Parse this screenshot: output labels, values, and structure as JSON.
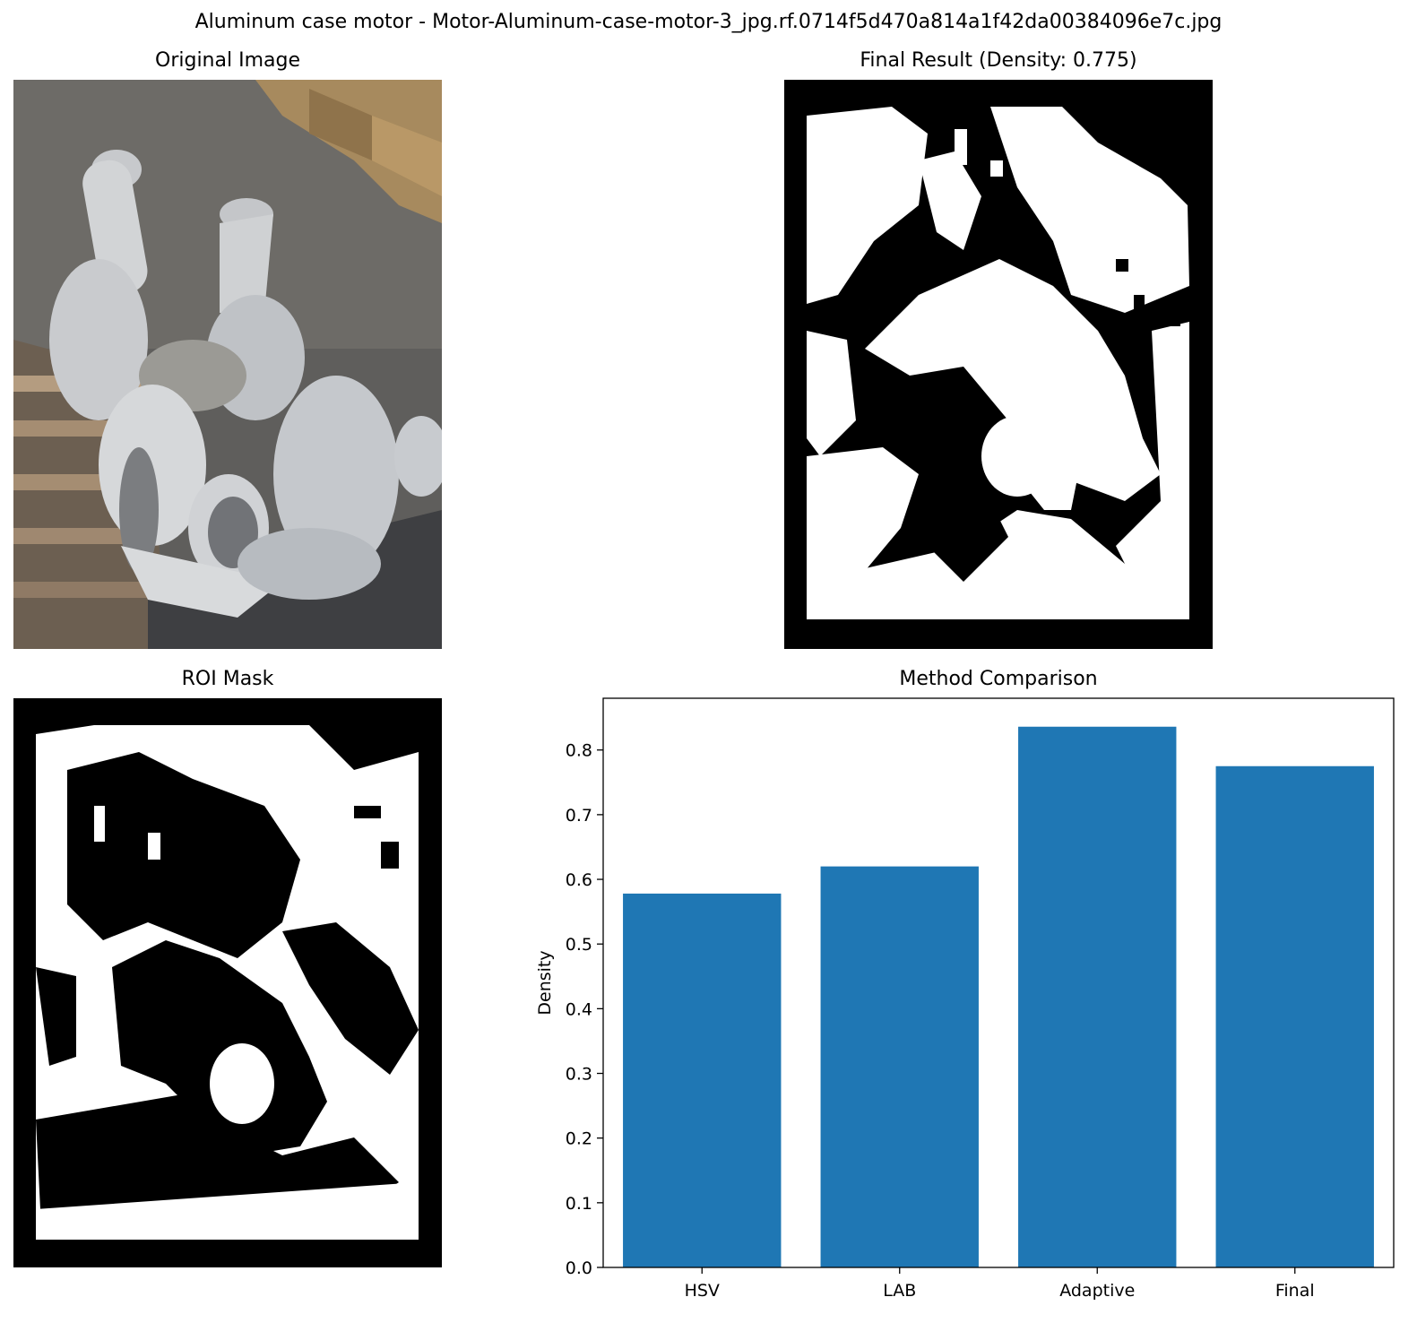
{
  "figure": {
    "suptitle": "Aluminum case motor - Motor-Aluminum-case-motor-3_jpg.rf.0714f5d470a814a1f42da00384096e7c.jpg"
  },
  "panels": {
    "original": {
      "title": "Original Image"
    },
    "final": {
      "title": "Final Result (Density: 0.775)"
    },
    "roi": {
      "title": "ROI Mask"
    },
    "comparison": {
      "title": "Method Comparison"
    }
  },
  "colors": {
    "bar": "#1f77b4",
    "mask_fg": "#ffffff",
    "mask_bg": "#000000"
  },
  "chart_data": {
    "type": "bar",
    "title": "Method Comparison",
    "categories": [
      "HSV",
      "LAB",
      "Adaptive",
      "Final"
    ],
    "values": [
      0.578,
      0.62,
      0.836,
      0.775
    ],
    "xlabel": "",
    "ylabel": "Density",
    "ylim": [
      0,
      0.88
    ],
    "yticks": [
      "0.0",
      "0.1",
      "0.2",
      "0.3",
      "0.4",
      "0.5",
      "0.6",
      "0.7",
      "0.8"
    ],
    "grid": false,
    "legend": "none"
  }
}
